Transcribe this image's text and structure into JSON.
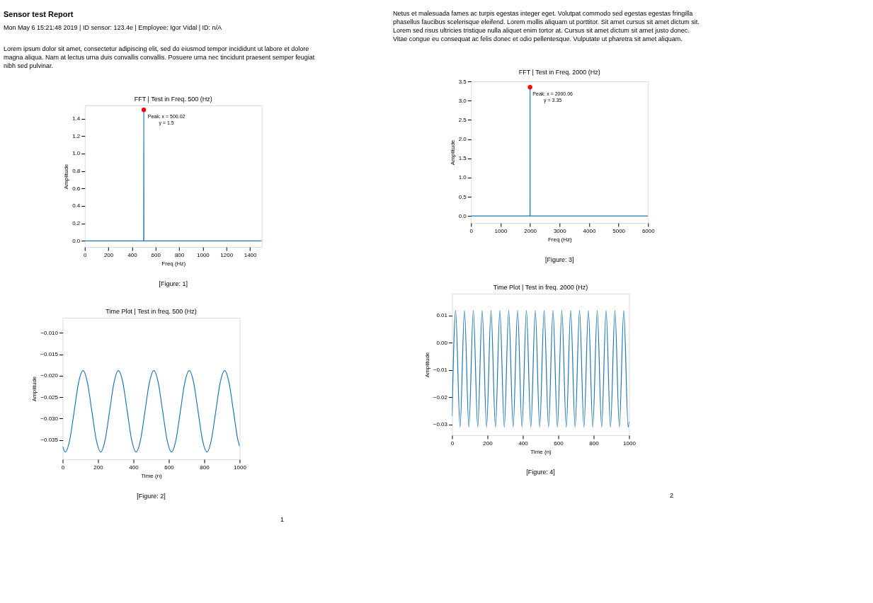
{
  "chart_data": [
    {
      "type": "other",
      "title": "Sensor test Report",
      "subtitle": "Mon May 6 15:21:48 2019 | ID sensor: 123.4e | Employee: Igor Vidal | ID: n/A",
      "annotations": [
        "Lorem ipsum dolor sit amet, consectetur adipiscing elit, sed do eiusmod tempor incididunt ut labore et dolore magna aliqua. Nam at lectus urna duis convallis convallis. Posuere urna nec tincidunt praesent semper feugiat nibh sed pulvinar."
      ]
    },
    {
      "type": "line",
      "title": "FFT | Test in Freq. 500 (Hz)",
      "xlabel": "Freq (Hz)",
      "ylabel": "Amplitude",
      "xlim": [
        0,
        1500
      ],
      "xticks": [
        0,
        200,
        400,
        600,
        800,
        1000,
        1200,
        1400
      ],
      "ylim": [
        -0.07,
        1.55
      ],
      "yticks": [
        {
          "value": 0,
          "label": "0.0"
        },
        0.2,
        0.4,
        0.6,
        0.8,
        {
          "value": 1,
          "label": "1.0"
        },
        1.2,
        1.4
      ],
      "series": [
        {
          "type": "line",
          "color": "#1f77b4",
          "x": [
            0,
            499,
            500.02,
            501,
            1500
          ],
          "values": [
            0,
            0,
            1.5,
            0,
            0
          ]
        },
        {
          "type": "scatter",
          "color": "#ff0000",
          "x": [
            500.02
          ],
          "values": [
            1.5
          ]
        }
      ],
      "annotations": [
        {
          "text": "Peak: x = 500.02\ny = 1.5",
          "x": 500.02,
          "y": 1.5
        },
        "[Figure: 1]"
      ]
    },
    {
      "type": "line",
      "title": "Time Plot | Test in freq. 500 (Hz)",
      "xlabel": "Time (n)",
      "ylabel": "Amplitude",
      "xlim": [
        0,
        1000
      ],
      "xticks": [
        0,
        200,
        400,
        600,
        800,
        1000
      ],
      "ylim": [
        -0.0395,
        -0.0065
      ],
      "yticks": [
        -0.035,
        {
          "value": -0.03,
          "label": "−0.030"
        },
        -0.025,
        {
          "value": -0.02,
          "label": "−0.020"
        },
        -0.015,
        {
          "value": -0.01,
          "label": "−0.010"
        }
      ],
      "series": [
        {
          "type": "line",
          "color": "#1f77b4",
          "x": [
            0,
            15,
            40,
            65,
            90,
            115,
            140,
            165,
            190,
            215,
            240,
            265,
            290,
            315,
            340,
            365,
            390,
            415,
            440,
            465,
            490,
            515,
            540,
            565,
            590,
            615,
            640,
            665,
            690,
            715,
            740,
            765,
            790,
            815,
            840,
            865,
            890,
            915,
            940,
            965,
            990,
            1000
          ],
          "values": [
            -0.0365,
            -0.0378,
            -0.035,
            -0.0283,
            -0.0216,
            -0.0188,
            -0.0216,
            -0.0283,
            -0.035,
            -0.0378,
            -0.035,
            -0.0283,
            -0.0216,
            -0.0188,
            -0.0216,
            -0.0283,
            -0.035,
            -0.0378,
            -0.035,
            -0.0283,
            -0.0216,
            -0.0188,
            -0.0216,
            -0.0283,
            -0.035,
            -0.0378,
            -0.035,
            -0.0283,
            -0.0216,
            -0.0188,
            -0.0216,
            -0.0283,
            -0.035,
            -0.0378,
            -0.035,
            -0.0283,
            -0.0216,
            -0.0188,
            -0.0216,
            -0.0283,
            -0.035,
            -0.0365
          ]
        }
      ],
      "annotations": [
        "[Figure: 2]",
        "1"
      ]
    },
    {
      "type": "other",
      "annotations": [
        "Netus et malesuada fames ac turpis egestas integer eget. Volutpat commodo sed egestas egestas fringilla phasellus faucibus scelerisque eleifend. Lorem mollis aliquam ut porttitor. Sit amet cursus sit amet dictum sit. Lorem sed risus ultricies tristique nulla aliquet enim tortor at. Cursus sit amet dictum sit amet justo donec. Vitae congue eu consequat ac felis donec et odio pellentesque. Vulputate ut pharetra sit amet aliquam."
      ]
    },
    {
      "type": "line",
      "title": "FFT | Test in Freq. 2000 (Hz)",
      "xlabel": "Freq (Hz)",
      "ylabel": "Amplitude",
      "xlim": [
        0,
        6000
      ],
      "xticks": [
        0,
        1000,
        2000,
        3000,
        4000,
        5000,
        6000
      ],
      "ylim": [
        -0.18,
        3.5
      ],
      "yticks": [
        {
          "value": 0,
          "label": "0.0"
        },
        0.5,
        {
          "value": 1,
          "label": "1.0"
        },
        1.5,
        {
          "value": 2,
          "label": "2.0"
        },
        2.5,
        {
          "value": 3,
          "label": "3.0"
        },
        3.5
      ],
      "series": [
        {
          "type": "line",
          "color": "#1f77b4",
          "x": [
            0,
            1998,
            2000.06,
            2002,
            6000
          ],
          "values": [
            0,
            0,
            3.35,
            0,
            0
          ]
        },
        {
          "type": "scatter",
          "color": "#ff0000",
          "x": [
            2000.06
          ],
          "values": [
            3.35
          ]
        }
      ],
      "annotations": [
        {
          "text": "Peak: x = 2000.06\ny = 3.35",
          "x": 2000.06,
          "y": 3.35
        },
        "[Figure: 3]"
      ]
    },
    {
      "type": "line",
      "title": "Time Plot | Test in freq. 2000 (Hz)",
      "xlabel": "Time (n)",
      "ylabel": "Amplitude",
      "xlim": [
        0,
        1000
      ],
      "xticks": [
        0,
        200,
        400,
        600,
        800,
        1000
      ],
      "ylim": [
        -0.034,
        0.018
      ],
      "yticks": [
        -0.03,
        -0.02,
        -0.01,
        {
          "value": 0,
          "label": "0.00"
        },
        0.01
      ],
      "series": [
        {
          "type": "line",
          "color": "#1f77b4",
          "x": [
            0,
            20,
            45,
            70,
            95,
            120,
            145,
            170,
            195,
            220,
            245,
            270,
            295,
            320,
            345,
            370,
            395,
            420,
            445,
            470,
            495,
            520,
            545,
            570,
            595,
            620,
            645,
            670,
            695,
            720,
            745,
            770,
            795,
            820,
            845,
            870,
            895,
            920,
            945,
            970,
            995,
            1000
          ],
          "values": [
            -0.027,
            0.0118,
            -0.031,
            0.0118,
            -0.031,
            0.0118,
            -0.031,
            0.0118,
            -0.031,
            0.0118,
            -0.031,
            0.0118,
            -0.031,
            0.0118,
            -0.031,
            0.0118,
            -0.031,
            0.0118,
            -0.031,
            0.0118,
            -0.031,
            0.0118,
            -0.031,
            0.0118,
            -0.031,
            0.0118,
            -0.031,
            0.0118,
            -0.031,
            0.0118,
            -0.031,
            0.0118,
            -0.031,
            0.0118,
            -0.031,
            0.0118,
            -0.031,
            0.0118,
            -0.031,
            0.0118,
            -0.031,
            -0.029
          ]
        }
      ],
      "annotations": [
        "[Figure: 4]",
        "2"
      ]
    }
  ]
}
